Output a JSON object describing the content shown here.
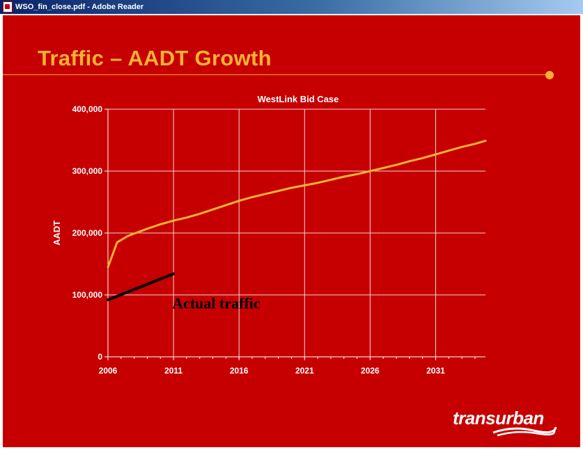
{
  "window": {
    "title": "WSO_fin_close.pdf - Adobe Reader",
    "icon": "pdf-document-icon"
  },
  "slide": {
    "title": "Traffic – AADT Growth",
    "accent_color": "#f8b133",
    "background_color": "#c60000",
    "logo_text": "transurban"
  },
  "chart_data": {
    "type": "line",
    "title": "WestLink Bid Case",
    "xlabel": "",
    "ylabel": "AADT",
    "xlim": [
      2006,
      2034.8
    ],
    "ylim": [
      0,
      400000
    ],
    "x_ticks": [
      2006,
      2011,
      2016,
      2021,
      2026,
      2031
    ],
    "y_ticks": [
      0,
      100000,
      200000,
      300000,
      400000
    ],
    "x_tick_labels": [
      "2006",
      "2011",
      "2016",
      "2021",
      "2026",
      "2031"
    ],
    "y_tick_labels": [
      "0",
      "100,000",
      "200,000",
      "300,000",
      "400,000"
    ],
    "grid": true,
    "series": [
      {
        "color": "#f8b133",
        "x": [
          2006,
          2006.7,
          2007.5,
          2008,
          2009,
          2010,
          2011,
          2012,
          2013,
          2014,
          2015,
          2016,
          2017,
          2018,
          2019,
          2020,
          2021,
          2022,
          2023,
          2024,
          2025,
          2026,
          2027,
          2028,
          2029,
          2030,
          2031,
          2032,
          2033,
          2034,
          2034.8
        ],
        "values": [
          145000,
          185000,
          195000,
          199000,
          207000,
          214000,
          220000,
          225000,
          231000,
          238000,
          245000,
          252000,
          258000,
          263000,
          268000,
          273000,
          277000,
          281000,
          286000,
          291000,
          295000,
          300000,
          305000,
          310000,
          316000,
          321000,
          327000,
          333000,
          339000,
          344000,
          349000
        ]
      },
      {
        "color": "#000000",
        "x": [
          2006,
          2011
        ],
        "values": [
          92000,
          134000
        ]
      }
    ],
    "annotations": [
      {
        "text": "Actual traffic",
        "x": 2010.9,
        "y": 78000
      }
    ]
  }
}
